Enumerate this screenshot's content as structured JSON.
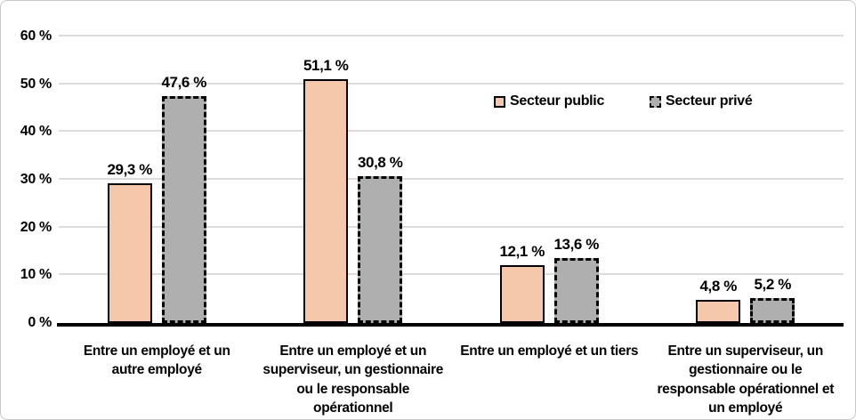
{
  "chart_data": {
    "type": "bar",
    "title": "",
    "categories": [
      "Entre un employé et un autre employé",
      "Entre un employé et un superviseur, un gestionnaire ou le responsable opérationnel",
      "Entre un employé et un tiers",
      "Entre un superviseur, un gestionnaire ou le responsable opérationnel et un employé"
    ],
    "series": [
      {
        "name": "Secteur public",
        "values": [
          29.3,
          51.1,
          12.1,
          4.8
        ],
        "value_labels": [
          "29,3 %",
          "51,1 %",
          "12,1 %",
          "4,8 %"
        ],
        "fill": "#F6C8AB",
        "border_color": "#000000",
        "border_style": "solid"
      },
      {
        "name": "Secteur privé",
        "values": [
          47.6,
          30.8,
          13.6,
          5.2
        ],
        "value_labels": [
          "47,6 %",
          "30,8 %",
          "13,6 %",
          "5,2 %"
        ],
        "fill": "#AFAFAF",
        "border_color": "#000000",
        "border_style": "dashed"
      }
    ],
    "xlabel": "",
    "ylabel": "",
    "ylim": [
      0,
      60
    ],
    "ytick_interval": 10,
    "ytick_labels": [
      "0 %",
      "10 %",
      "20 %",
      "30 %",
      "40 %",
      "50 %",
      "60 %"
    ],
    "grid": true,
    "legend_position": "inside-upper-right"
  },
  "colors": {
    "gridline": "#DCDCDC",
    "axis_line": "#000000",
    "text": "#000000",
    "figure_border": "#C9C9C9",
    "background": "#FFFFFF"
  }
}
